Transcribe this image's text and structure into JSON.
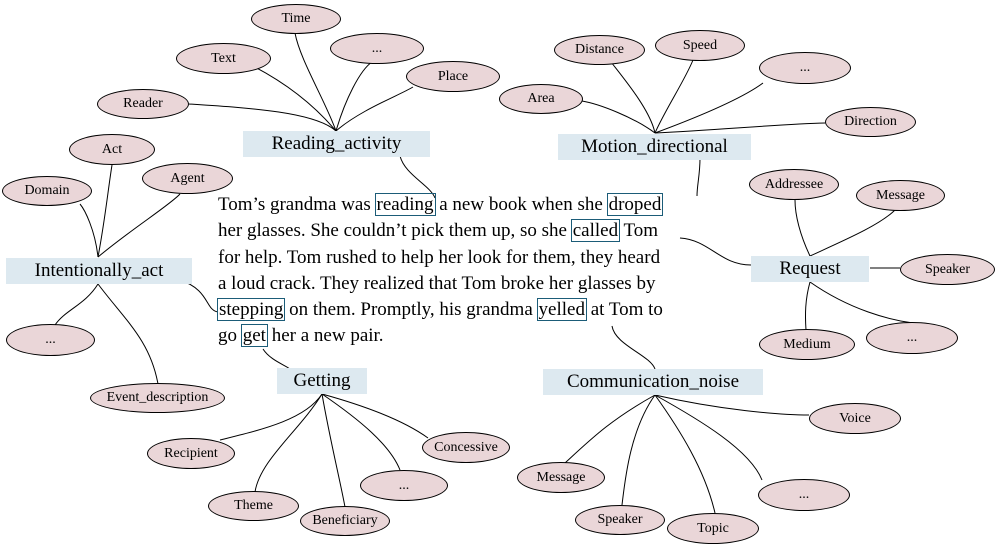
{
  "frames": {
    "reading_activity": "Reading_activity",
    "motion_directional": "Motion_directional",
    "intentionally_act": "Intentionally_act",
    "request": "Request",
    "getting": "Getting",
    "communication_noise": "Communication_noise"
  },
  "elements": {
    "reading_activity": {
      "reader": "Reader",
      "text": "Text",
      "time": "Time",
      "ellipsis": "...",
      "place": "Place"
    },
    "motion_directional": {
      "area": "Area",
      "distance": "Distance",
      "speed": "Speed",
      "ellipsis": "...",
      "direction": "Direction"
    },
    "intentionally_act": {
      "domain": "Domain",
      "act": "Act",
      "agent": "Agent",
      "ellipsis": "...",
      "event_description": "Event_description"
    },
    "request": {
      "addressee": "Addressee",
      "message": "Message",
      "speaker": "Speaker",
      "medium": "Medium",
      "ellipsis": "..."
    },
    "getting": {
      "recipient": "Recipient",
      "theme": "Theme",
      "beneficiary": "Beneficiary",
      "ellipsis": "...",
      "concessive": "Concessive"
    },
    "communication_noise": {
      "message": "Message",
      "speaker": "Speaker",
      "topic": "Topic",
      "ellipsis": "...",
      "voice": "Voice"
    }
  },
  "story": {
    "line1": {
      "a": "Tom’s grandma was ",
      "t1": "reading",
      "b": " a new book when she ",
      "t2": "droped"
    },
    "line2": {
      "a": "her glasses. She couldn’t pick them up, so she ",
      "t1": "called",
      "b": " Tom"
    },
    "line3": {
      "a": "for help. Tom rushed to help her look for them, they heard"
    },
    "line4": {
      "a": "a loud crack. They realized that Tom broke her glasses by"
    },
    "line5": {
      "t1": "stepping",
      "a": " on them. Promptly, his grandma ",
      "t2": "yelled",
      "b": " at Tom to"
    },
    "line6": {
      "a": "go ",
      "t1": "get",
      "b": " her a new pair."
    }
  },
  "colors": {
    "frame_fill": "#dde9f0",
    "element_fill": "#ead6d8",
    "highlight_border": "#1b5c78"
  }
}
